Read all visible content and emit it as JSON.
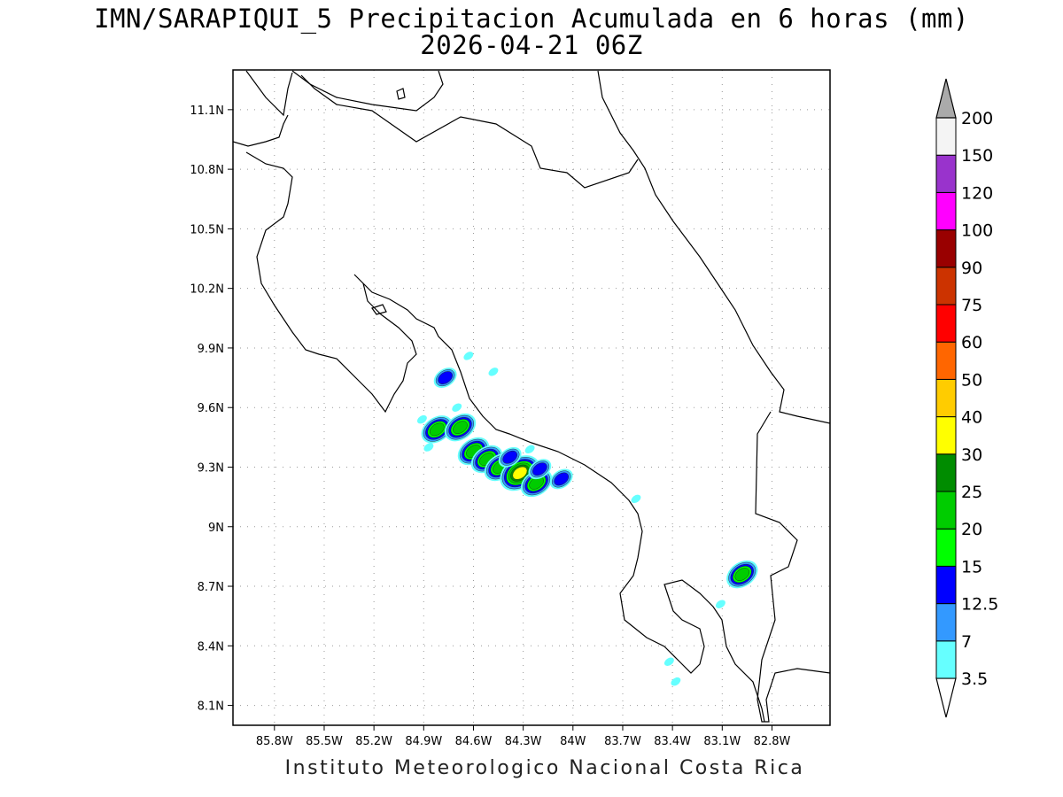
{
  "title": "IMN/SARAPIQUI_5 Precipitacion Acumulada en 6 horas (mm)",
  "subtitle": "2026-04-21 06Z",
  "footer": "Instituto Meteorologico Nacional Costa Rica",
  "map": {
    "lon_range": [
      -86.05,
      -82.45
    ],
    "lat_range": [
      8.0,
      11.3
    ],
    "lon_ticks": [
      {
        "value": -85.8,
        "label": "85.8W"
      },
      {
        "value": -85.5,
        "label": "85.5W"
      },
      {
        "value": -85.2,
        "label": "85.2W"
      },
      {
        "value": -84.9,
        "label": "84.9W"
      },
      {
        "value": -84.6,
        "label": "84.6W"
      },
      {
        "value": -84.3,
        "label": "84.3W"
      },
      {
        "value": -84.0,
        "label": "84W"
      },
      {
        "value": -83.7,
        "label": "83.7W"
      },
      {
        "value": -83.4,
        "label": "83.4W"
      },
      {
        "value": -83.1,
        "label": "83.1W"
      },
      {
        "value": -82.8,
        "label": "82.8W"
      }
    ],
    "lat_ticks": [
      {
        "value": 8.1,
        "label": "8.1N"
      },
      {
        "value": 8.4,
        "label": "8.4N"
      },
      {
        "value": 8.7,
        "label": "8.7N"
      },
      {
        "value": 9.0,
        "label": "9N"
      },
      {
        "value": 9.3,
        "label": "9.3N"
      },
      {
        "value": 9.6,
        "label": "9.6N"
      },
      {
        "value": 9.9,
        "label": "9.9N"
      },
      {
        "value": 10.2,
        "label": "10.2N"
      },
      {
        "value": 10.5,
        "label": "10.5N"
      },
      {
        "value": 10.8,
        "label": "10.8N"
      },
      {
        "value": 11.1,
        "label": "11.1N"
      }
    ],
    "grid": true
  },
  "legend": {
    "levels": [
      {
        "label": "3.5",
        "color": "#66ffff"
      },
      {
        "label": "7",
        "color": "#3399ff"
      },
      {
        "label": "12.5",
        "color": "#0000ff"
      },
      {
        "label": "15",
        "color": "#00ff00"
      },
      {
        "label": "20",
        "color": "#00cc00"
      },
      {
        "label": "25",
        "color": "#008c00"
      },
      {
        "label": "30",
        "color": "#ffff00"
      },
      {
        "label": "40",
        "color": "#ffcc00"
      },
      {
        "label": "50",
        "color": "#ff6600"
      },
      {
        "label": "60",
        "color": "#ff0000"
      },
      {
        "label": "75",
        "color": "#cc3300"
      },
      {
        "label": "90",
        "color": "#990000"
      },
      {
        "label": "100",
        "color": "#ff00ff"
      },
      {
        "label": "120",
        "color": "#9933cc"
      },
      {
        "label": "150",
        "color": "#f4f4f4"
      },
      {
        "label": "200",
        "color": "#ffffff"
      }
    ],
    "top_arrow_color": "#aaaaaa"
  },
  "rain_cells": [
    {
      "lon": -84.77,
      "lat": 9.75,
      "level": 2
    },
    {
      "lon": -84.82,
      "lat": 9.49,
      "level": 4
    },
    {
      "lon": -84.68,
      "lat": 9.5,
      "level": 4
    },
    {
      "lon": -84.6,
      "lat": 9.38,
      "level": 4
    },
    {
      "lon": -84.52,
      "lat": 9.34,
      "level": 4
    },
    {
      "lon": -84.44,
      "lat": 9.3,
      "level": 4
    },
    {
      "lon": -84.32,
      "lat": 9.27,
      "level": 6
    },
    {
      "lon": -84.22,
      "lat": 9.22,
      "level": 4
    },
    {
      "lon": -84.07,
      "lat": 9.24,
      "level": 2
    },
    {
      "lon": -84.38,
      "lat": 9.35,
      "level": 2
    },
    {
      "lon": -84.2,
      "lat": 9.29,
      "level": 2
    },
    {
      "lon": -82.98,
      "lat": 8.76,
      "level": 4
    },
    {
      "lon": -84.63,
      "lat": 9.86,
      "level": 0
    },
    {
      "lon": -84.48,
      "lat": 9.78,
      "level": 0
    },
    {
      "lon": -83.62,
      "lat": 9.14,
      "level": 0
    },
    {
      "lon": -83.11,
      "lat": 8.61,
      "level": 0
    },
    {
      "lon": -83.42,
      "lat": 8.32,
      "level": 0
    },
    {
      "lon": -83.38,
      "lat": 8.22,
      "level": 0
    },
    {
      "lon": -84.91,
      "lat": 9.54,
      "level": 0
    },
    {
      "lon": -84.7,
      "lat": 9.6,
      "level": 0
    },
    {
      "lon": -84.26,
      "lat": 9.39,
      "level": 0
    },
    {
      "lon": -84.87,
      "lat": 9.4,
      "level": 0
    }
  ]
}
